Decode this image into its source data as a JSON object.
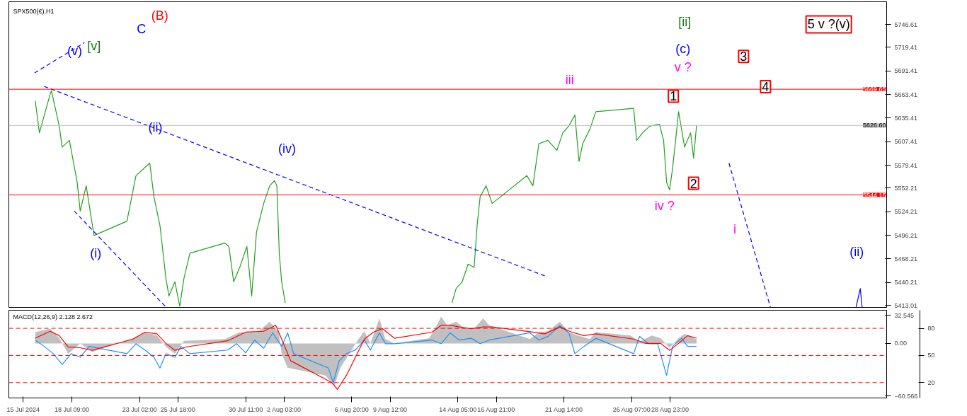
{
  "chart_data": [
    {
      "type": "line",
      "title": "SPX500(€),H1",
      "xlim": [
        "2024-07-14T00:00",
        "2024-09-13T00:00"
      ],
      "ylim": [
        5410.6,
        5773.5
      ],
      "tick_labels": "y",
      "yticks": [
        5413.01,
        5440.21,
        5468.21,
        5496.21,
        5524.21,
        5552.21,
        5579.41,
        5607.41,
        5635.41,
        5663.41,
        5691.41,
        5719.41,
        5746.61
      ],
      "series": [
        {
          "color": "#22a022",
          "x": [
            "2024-07-15T20:00",
            "2024-07-16T03:00",
            "2024-07-16T21:00",
            "2024-07-16T23:00",
            "2024-07-17T12:00",
            "2024-07-17T17:00",
            "2024-07-18T05:00",
            "2024-07-18T18:00",
            "2024-07-18T23:00",
            "2024-07-19T09:00",
            "2024-07-19T22:00",
            "2024-07-22T05:00",
            "2024-07-22T20:00",
            "2024-07-23T19:00",
            "2024-07-24T02:00",
            "2024-07-24T12:00",
            "2024-07-24T22:00",
            "2024-07-25T03:00",
            "2024-07-25T13:00",
            "2024-07-25T21:00",
            "2024-07-26T04:00",
            "2024-07-26T14:00",
            "2024-07-29T00:00",
            "2024-07-29T07:00",
            "2024-07-29T15:00",
            "2024-07-30T01:00",
            "2024-07-30T13:00",
            "2024-07-30T21:00",
            "2024-07-31T05:00",
            "2024-07-31T17:00",
            "2024-08-01T03:00",
            "2024-08-01T11:00",
            "2024-08-01T15:00",
            "2024-08-01T19:00",
            "2024-08-01T23:00",
            "2024-08-02T05:00",
            "2024-08-02T13:00",
            "2024-08-13T19:00",
            "2024-08-14T02:00",
            "2024-08-14T12:00",
            "2024-08-14T22:00",
            "2024-08-15T08:00",
            "2024-08-15T13:00",
            "2024-08-15T18:00",
            "2024-08-16T04:00",
            "2024-08-16T14:00",
            "2024-08-19T00:00",
            "2024-08-19T10:00",
            "2024-08-19T20:00",
            "2024-08-20T11:00",
            "2024-08-21T02:00",
            "2024-08-21T12:00",
            "2024-08-21T22:00",
            "2024-08-22T08:00",
            "2024-08-22T15:00",
            "2024-08-22T21:00",
            "2024-08-23T09:00",
            "2024-08-23T19:00",
            "2024-08-26T10:00",
            "2024-08-26T15:00",
            "2024-08-27T01:00",
            "2024-08-27T13:00",
            "2024-08-28T05:00",
            "2024-08-28T12:00",
            "2024-08-28T17:00",
            "2024-08-28T22:00",
            "2024-08-29T03:00",
            "2024-08-29T08:00",
            "2024-08-29T13:00",
            "2024-08-29T18:00",
            "2024-08-29T23:00",
            "2024-08-30T09:00",
            "2024-08-30T14:00",
            "2024-08-30T19:00"
          ],
          "values": [
            5656,
            5618,
            5664,
            5668,
            5626,
            5601,
            5609,
            5559,
            5525,
            5555,
            5496,
            5513,
            5567,
            5582,
            5542,
            5508,
            5445,
            5424,
            5441,
            5412,
            5445,
            5475,
            5487,
            5483,
            5441,
            5458,
            5483,
            5424,
            5500,
            5534,
            5555,
            5561,
            5555,
            5475,
            5441,
            5416,
            null,
            5416,
            5433,
            5441,
            5462,
            5458,
            5508,
            5542,
            5555,
            5534,
            5567,
            5555,
            5605,
            5609,
            5597,
            5618,
            5626,
            5639,
            5584,
            5605,
            5622,
            5643,
            5647,
            5609,
            5618,
            5626,
            5628,
            5609,
            5559,
            5550,
            5576,
            5609,
            5643,
            5622,
            5601,
            5618,
            5588,
            5627
          ]
        },
        {
          "color": "#0000ff",
          "line_style": "dashed",
          "x": [
            "2024-07-15T19:00",
            "2024-07-19T06:00"
          ],
          "values": [
            5689,
            5725
          ]
        },
        {
          "color": "#0000ff",
          "line_style": "dashed",
          "x": [
            "2024-07-16T11:00",
            "2024-08-20T06:00"
          ],
          "values": [
            5673,
            5448
          ]
        },
        {
          "color": "#0000ff",
          "line_style": "dashed",
          "x": [
            "2024-07-18T13:00",
            "2024-07-24T22:00"
          ],
          "values": [
            5525,
            5411
          ]
        },
        {
          "color": "#0000ff",
          "line_style": "dashed",
          "x": [
            "2024-09-02T01:00",
            "2024-09-04T22:00"
          ],
          "values": [
            5582,
            5411
          ]
        },
        {
          "color": "#0000ff",
          "x": [
            "2024-09-10T21:00",
            "2024-09-11T04:00",
            "2024-09-11T07:00"
          ],
          "values": [
            5411,
            5433,
            5411
          ]
        }
      ],
      "ref_lines": [
        {
          "axis": "y",
          "value": 5669.65,
          "label": "5669.65",
          "color": "#ff0000"
        },
        {
          "axis": "y",
          "value": 5544.15,
          "label": "5544.15",
          "color": "#ff0000"
        },
        {
          "axis": "y",
          "value": 5626.6,
          "label": "5626.60",
          "color": "#c0c0c0"
        }
      ],
      "annotations": [
        "(B)",
        "C",
        "[v]",
        "(v)",
        "(ii)",
        "(i)",
        "(iv)",
        "iii",
        "[ii]",
        "(c)",
        "v ?",
        "1",
        "2",
        "3",
        "4",
        "5 v ?(v)",
        "iv ?",
        "i",
        "(ii)"
      ]
    },
    {
      "type": "line",
      "title": "MACD(12,26,9) 2.128 2.672",
      "xlim": [
        "2024-07-14T00:00",
        "2024-09-13T00:00"
      ],
      "ylim": [
        -63.0,
        38.3
      ],
      "y2lim": [
        3,
        100
      ],
      "xticks": [
        {
          "value": "2024-07-15",
          "label": "15 Jul 2024"
        },
        {
          "value": "2024-07-18T09:00",
          "label": "18 Jul 09:00"
        },
        {
          "value": "2024-07-23T02:00",
          "label": "23 Jul 02:00"
        },
        {
          "value": "2024-07-25T18:00",
          "label": "25 Jul 18:00"
        },
        {
          "value": "2024-07-30T11:00",
          "label": "30 Jul 11:00"
        },
        {
          "value": "2024-08-02T03:00",
          "label": "2 Aug 03:00"
        },
        {
          "value": "2024-08-06T20:00",
          "label": "6 Aug 20:00"
        },
        {
          "value": "2024-08-09T12:00",
          "label": "9 Aug 12:00"
        },
        {
          "value": "2024-08-14T05:00",
          "label": "14 Aug 05:00"
        },
        {
          "value": "2024-08-16T21:00",
          "label": "16 Aug 21:00"
        },
        {
          "value": "2024-08-21T14:00",
          "label": "21 Aug 14:00"
        },
        {
          "value": "2024-08-26T07:00",
          "label": "26 Aug 07:00"
        },
        {
          "value": "2024-08-28T23:00",
          "label": "28 Aug 23:00"
        }
      ],
      "yticks": [
        32.545,
        {
          "value": 0,
          "label": "0.00"
        },
        -60.566
      ],
      "y2ticks": [
        80,
        50,
        20
      ],
      "series": [
        {
          "type": "area",
          "color": "#c0c0c0",
          "x": [
            "2024-07-15T20:00",
            "2024-07-16T21:00",
            "2024-07-17T12:00",
            "2024-07-18T03:00",
            "2024-07-18T23:00",
            "2024-07-19T19:00",
            "2024-07-22T15:00",
            "2024-07-23T11:00",
            "2024-07-24T07:00",
            "2024-07-24T22:00",
            "2024-07-25T13:00",
            "2024-07-26T04:00",
            "2024-07-29T00:00",
            "2024-07-30T01:00",
            "2024-07-31T07:00",
            "2024-08-01T03:00",
            "2024-08-01T18:00",
            "2024-08-01T23:00",
            "2024-08-02T09:00",
            "2024-08-05T00:00",
            "2024-08-05T15:00",
            "2024-08-06T01:00",
            "2024-08-06T16:00",
            "2024-08-07T07:00",
            "2024-08-07T17:00",
            "2024-08-08T03:00",
            "2024-08-08T18:00",
            "2024-08-09T04:00",
            "2024-08-09T19:00",
            "2024-08-12T05:00",
            "2024-08-12T15:00",
            "2024-08-13T01:00",
            "2024-08-13T11:00",
            "2024-08-14T02:00",
            "2024-08-14T17:00",
            "2024-08-15T08:00",
            "2024-08-15T23:00",
            "2024-08-16T09:00",
            "2024-08-19T05:00",
            "2024-08-19T20:00",
            "2024-08-20T11:00",
            "2024-08-21T07:00",
            "2024-08-21T22:00",
            "2024-08-22T13:00",
            "2024-08-23T09:00",
            "2024-08-23T19:00",
            "2024-08-26T05:00",
            "2024-08-26T20:00",
            "2024-08-27T16:00",
            "2024-08-28T07:00",
            "2024-08-28T22:00",
            "2024-08-29T13:00",
            "2024-08-29T23:00",
            "2024-08-30T14:00",
            "2024-08-30T19:00"
          ],
          "values": [
            13,
            17,
            6,
            -12,
            0,
            -10,
            6,
            13,
            9,
            -4,
            -12,
            3,
            5,
            13,
            13,
            25,
            13,
            -12,
            -28,
            -37,
            -49,
            -28,
            -12,
            5,
            14,
            0,
            29,
            5,
            0,
            6,
            17,
            31,
            21,
            25,
            17,
            17,
            29,
            21,
            5,
            13,
            14,
            25,
            13,
            9,
            5,
            13,
            9,
            2,
            9,
            6,
            -5,
            6,
            11,
            6,
            5
          ]
        },
        {
          "color": "#1e90ff",
          "axis": "y2",
          "x": [
            "2024-07-15T20:00",
            "2024-07-16T11:00",
            "2024-07-17T02:00",
            "2024-07-17T17:00",
            "2024-07-18T08:00",
            "2024-07-18T23:00",
            "2024-07-19T14:00",
            "2024-07-22T05:00",
            "2024-07-22T20:00",
            "2024-07-23T11:00",
            "2024-07-24T02:00",
            "2024-07-24T12:00",
            "2024-07-24T22:00",
            "2024-07-25T13:00",
            "2024-07-25T23:00",
            "2024-07-26T14:00",
            "2024-07-29T05:00",
            "2024-07-29T20:00",
            "2024-07-30T11:00",
            "2024-07-31T02:00",
            "2024-07-31T17:00",
            "2024-08-01T08:00",
            "2024-08-01T23:00",
            "2024-08-02T09:00",
            "2024-08-02T19:00",
            "2024-08-05T05:00",
            "2024-08-05T13:00",
            "2024-08-05T23:00",
            "2024-08-06T11:00",
            "2024-08-07T02:00",
            "2024-08-07T17:00",
            "2024-08-08T03:00",
            "2024-08-08T18:00",
            "2024-08-09T04:00",
            "2024-08-09T19:00",
            "2024-08-12T10:00",
            "2024-08-13T01:00",
            "2024-08-13T16:00",
            "2024-08-14T07:00",
            "2024-08-15T03:00",
            "2024-08-15T18:00",
            "2024-08-16T09:00",
            "2024-08-19T05:00",
            "2024-08-19T20:00",
            "2024-08-20T11:00",
            "2024-08-21T07:00",
            "2024-08-21T22:00",
            "2024-08-22T08:00",
            "2024-08-22T23:00",
            "2024-08-23T19:00",
            "2024-08-26T10:00",
            "2024-08-26T20:00",
            "2024-08-27T11:00",
            "2024-08-28T02:00",
            "2024-08-28T17:00",
            "2024-08-29T03:00",
            "2024-08-29T18:00",
            "2024-08-30T04:00",
            "2024-08-30T19:00"
          ],
          "values": [
            67,
            60,
            52,
            40,
            52,
            48,
            60,
            52,
            63,
            56,
            48,
            36,
            52,
            48,
            60,
            52,
            56,
            63,
            53,
            67,
            58,
            75,
            60,
            75,
            52,
            36,
            20,
            44,
            52,
            56,
            67,
            56,
            75,
            63,
            63,
            67,
            63,
            75,
            67,
            69,
            63,
            67,
            75,
            67,
            71,
            83,
            75,
            52,
            60,
            69,
            52,
            71,
            63,
            63,
            28,
            60,
            69,
            60,
            60
          ]
        },
        {
          "color": "#ff0000",
          "x": [
            "2024-07-15T20:00",
            "2024-07-16T21:00",
            "2024-07-17T12:00",
            "2024-07-18T03:00",
            "2024-07-18T23:00",
            "2024-07-19T19:00",
            "2024-07-22T15:00",
            "2024-07-23T11:00",
            "2024-07-24T07:00",
            "2024-07-24T22:00",
            "2024-07-25T13:00",
            "2024-07-26T09:00",
            "2024-07-29T05:00",
            "2024-07-30T11:00",
            "2024-07-31T17:00",
            "2024-08-01T13:00",
            "2024-08-01T23:00",
            "2024-08-02T14:00",
            "2024-08-05T10:00",
            "2024-08-05T20:00",
            "2024-08-06T11:00",
            "2024-08-07T02:00",
            "2024-08-07T17:00",
            "2024-08-08T08:00",
            "2024-08-08T23:00",
            "2024-08-09T19:00",
            "2024-08-12T10:00",
            "2024-08-13T01:00",
            "2024-08-13T16:00",
            "2024-08-14T07:00",
            "2024-08-15T03:00",
            "2024-08-15T23:00",
            "2024-08-16T14:00",
            "2024-08-19T10:00",
            "2024-08-20T06:00",
            "2024-08-21T07:00",
            "2024-08-22T03:00",
            "2024-08-22T23:00",
            "2024-08-23T19:00",
            "2024-08-26T10:00",
            "2024-08-27T06:00",
            "2024-08-28T07:00",
            "2024-08-28T22:00",
            "2024-08-29T13:00",
            "2024-08-30T04:00",
            "2024-08-30T19:00"
          ],
          "values": [
            6,
            14,
            9,
            -4,
            -5,
            -8,
            5,
            13,
            11,
            0,
            -8,
            -4,
            3,
            13,
            14,
            21,
            5,
            -20,
            -45,
            -53,
            -37,
            -16,
            5,
            13,
            17,
            6,
            13,
            21,
            21,
            19,
            17,
            19,
            19,
            13,
            11,
            19,
            13,
            9,
            11,
            5,
            0,
            0,
            -8,
            0,
            9,
            6
          ]
        }
      ],
      "ref_lines": [
        {
          "axis": "y2",
          "value": 80,
          "color": "#ff0000",
          "line_style": "dashed"
        },
        {
          "axis": "y2",
          "value": 50,
          "color": "#ff0000",
          "line_style": "dashed"
        },
        {
          "axis": "y2",
          "value": 20,
          "color": "#ff0000",
          "line_style": "dashed"
        }
      ]
    }
  ]
}
